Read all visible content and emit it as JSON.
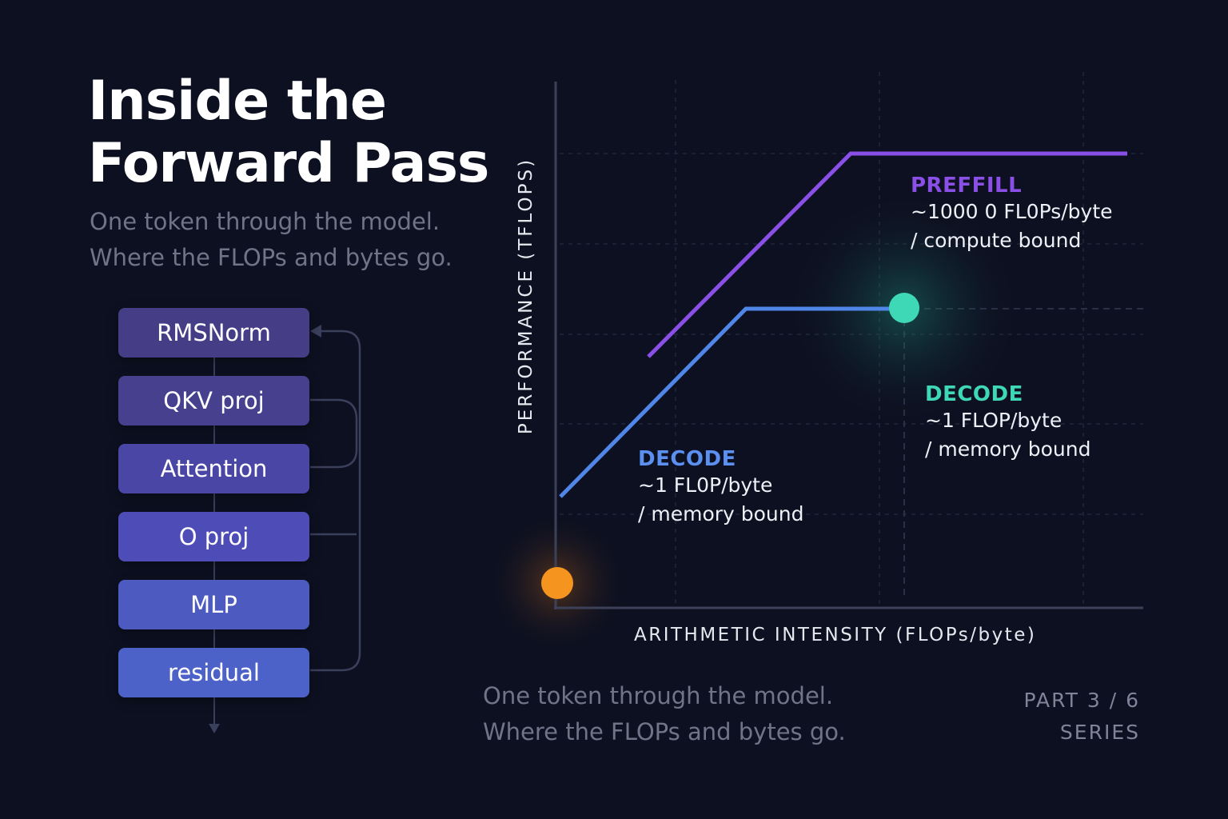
{
  "header": {
    "title_line1": "Inside the",
    "title_line2": "Forward Pass",
    "subtitle_line1": "One token through the model.",
    "subtitle_line2": "Where the FLOPs and bytes go."
  },
  "stack": {
    "blocks": [
      "RMSNorm",
      "QKV proj",
      "Attention",
      "O proj",
      "MLP",
      "residual"
    ]
  },
  "chart": {
    "ylabel": "PERFORMANCE (TFLOPS)",
    "xlabel": "ARITHMETIC INTENSITY (FLOPs/byte)",
    "prefill": {
      "title": "PREFFILL",
      "line1": "~1000 0 FL0Ps/byte",
      "line2": "/ compute bound"
    },
    "decode_right": {
      "title": "DECODE",
      "line1": "~1 FLOP/byte",
      "line2": "/ memory bound"
    },
    "decode_left": {
      "title": "DECODE",
      "line1": "~1 FL0P/byte",
      "line2": "/ memory bound"
    }
  },
  "footer": {
    "line1": "One token through the model.",
    "line2": "Where the FLOPs and bytes go.",
    "part": "PART 3 / 6",
    "series": "SERIES"
  },
  "colors": {
    "background": "#0d1020",
    "prefill": "#8a4fe6",
    "decode": "#4f86e8",
    "decode_accent": "#3fd8b6",
    "marker_orange": "#f5951f",
    "marker_teal": "#3fd8b6"
  }
}
